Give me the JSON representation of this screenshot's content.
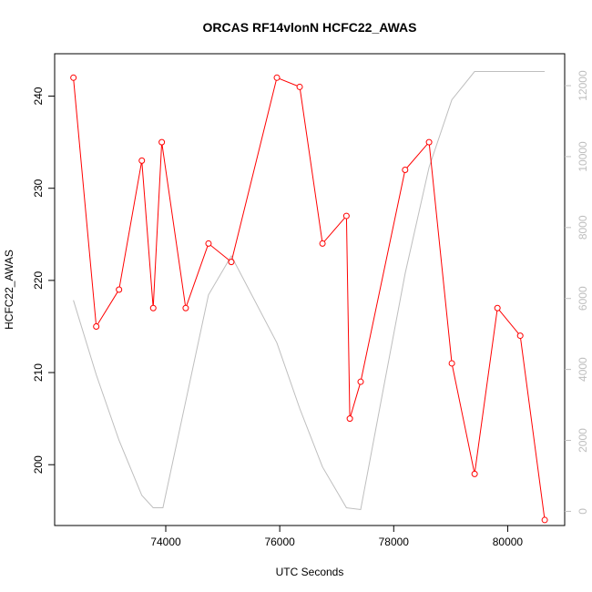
{
  "chart_data": {
    "type": "line",
    "title": "ORCAS RF14vlonN HCFC22_AWAS",
    "xlabel": "UTC Seconds",
    "ylabel": "HCFC22_AWAS",
    "y2label": "",
    "xlim": [
      72050,
      81000
    ],
    "ylim": [
      193.4,
      244.6
    ],
    "y2lim": [
      -400,
      12900
    ],
    "x_ticks": [
      74000,
      76000,
      78000,
      80000
    ],
    "y_ticks": [
      200,
      210,
      220,
      230,
      240
    ],
    "y2_ticks": [
      0,
      2000,
      4000,
      6000,
      8000,
      10000,
      12000
    ],
    "grid": false,
    "legend": "none",
    "series": [
      {
        "axis": "left",
        "color": "#ff0000",
        "marker": "open-circle",
        "x": [
          72380,
          72780,
          73180,
          73580,
          73780,
          73930,
          74350,
          74750,
          75150,
          75950,
          76350,
          76750,
          77170,
          77230,
          77420,
          78200,
          78620,
          79020,
          79420,
          79820,
          80220,
          80650
        ],
        "values": [
          242,
          215,
          219,
          233,
          217,
          235,
          217,
          224,
          222,
          242,
          241,
          224,
          227,
          205,
          209,
          232,
          235,
          211,
          199,
          217,
          214,
          194
        ]
      },
      {
        "axis": "right",
        "color": "#bebebe",
        "marker": "none",
        "x": [
          72380,
          72780,
          73180,
          73580,
          73780,
          73950,
          74350,
          74750,
          75150,
          75950,
          76350,
          76750,
          77170,
          77420,
          77800,
          78200,
          78620,
          79020,
          79420,
          79820,
          80220,
          80650
        ],
        "values": [
          5950,
          3850,
          2000,
          450,
          100,
          100,
          3100,
          6100,
          7200,
          4750,
          2900,
          1250,
          100,
          50,
          3300,
          6700,
          9700,
          11600,
          12400,
          12400,
          12400,
          12400
        ]
      }
    ]
  }
}
